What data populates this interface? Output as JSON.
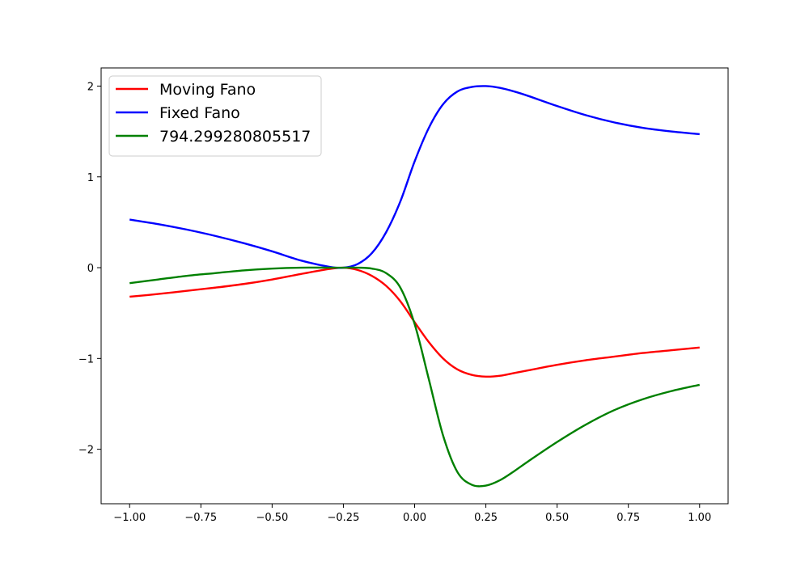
{
  "chart_data": {
    "type": "line",
    "title": "",
    "xlabel": "",
    "ylabel": "",
    "xlim": [
      -1.1,
      1.1
    ],
    "ylim": [
      -2.6,
      2.2
    ],
    "x_ticks": [
      -1.0,
      -0.75,
      -0.5,
      -0.25,
      0.0,
      0.25,
      0.5,
      0.75,
      1.0
    ],
    "x_tick_labels": [
      "−1.00",
      "−0.75",
      "−0.50",
      "−0.25",
      "0.00",
      "0.25",
      "0.50",
      "0.75",
      "1.00"
    ],
    "y_ticks": [
      -2,
      -1,
      0,
      1,
      2
    ],
    "y_tick_labels": [
      "−2",
      "−1",
      "0",
      "1",
      "2"
    ],
    "grid": false,
    "legend_position": "upper-left",
    "series": [
      {
        "name": "Moving Fano",
        "color": "#ff0000",
        "x": [
          -1.0,
          -0.9,
          -0.8,
          -0.7,
          -0.6,
          -0.5,
          -0.4,
          -0.3,
          -0.25,
          -0.2,
          -0.15,
          -0.1,
          -0.05,
          0.0,
          0.05,
          0.1,
          0.15,
          0.2,
          0.25,
          0.3,
          0.35,
          0.4,
          0.5,
          0.6,
          0.7,
          0.8,
          0.9,
          1.0
        ],
        "y": [
          -0.32,
          -0.29,
          -0.255,
          -0.22,
          -0.18,
          -0.13,
          -0.07,
          -0.015,
          0.0,
          -0.025,
          -0.09,
          -0.2,
          -0.37,
          -0.6,
          -0.82,
          -1.0,
          -1.12,
          -1.18,
          -1.2,
          -1.19,
          -1.16,
          -1.13,
          -1.07,
          -1.02,
          -0.98,
          -0.94,
          -0.91,
          -0.88
        ]
      },
      {
        "name": "Fixed Fano",
        "color": "#0000ff",
        "x": [
          -1.0,
          -0.9,
          -0.8,
          -0.7,
          -0.6,
          -0.5,
          -0.4,
          -0.3,
          -0.25,
          -0.2,
          -0.15,
          -0.1,
          -0.05,
          0.0,
          0.05,
          0.1,
          0.15,
          0.2,
          0.25,
          0.3,
          0.35,
          0.4,
          0.5,
          0.6,
          0.7,
          0.8,
          0.9,
          1.0
        ],
        "y": [
          0.53,
          0.48,
          0.42,
          0.35,
          0.27,
          0.18,
          0.08,
          0.01,
          0.0,
          0.04,
          0.16,
          0.39,
          0.73,
          1.17,
          1.54,
          1.8,
          1.94,
          1.99,
          2.0,
          1.98,
          1.94,
          1.89,
          1.78,
          1.68,
          1.6,
          1.54,
          1.5,
          1.47
        ]
      },
      {
        "name": "794.299280805517",
        "color": "#008000",
        "x": [
          -1.0,
          -0.9,
          -0.8,
          -0.7,
          -0.6,
          -0.5,
          -0.4,
          -0.3,
          -0.25,
          -0.2,
          -0.15,
          -0.1,
          -0.05,
          0.0,
          0.05,
          0.1,
          0.15,
          0.2,
          0.25,
          0.3,
          0.35,
          0.4,
          0.5,
          0.6,
          0.7,
          0.8,
          0.9,
          1.0
        ],
        "y": [
          -0.17,
          -0.13,
          -0.09,
          -0.06,
          -0.03,
          -0.01,
          0.0,
          0.0,
          0.0,
          0.0,
          -0.01,
          -0.06,
          -0.22,
          -0.62,
          -1.23,
          -1.85,
          -2.25,
          -2.39,
          -2.4,
          -2.34,
          -2.24,
          -2.13,
          -1.92,
          -1.73,
          -1.57,
          -1.45,
          -1.36,
          -1.29
        ]
      }
    ]
  }
}
